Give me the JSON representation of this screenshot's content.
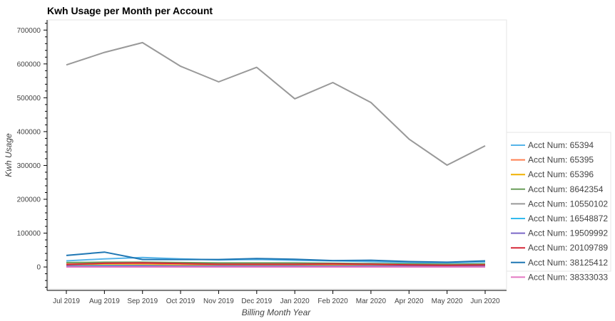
{
  "chart_data": {
    "type": "line",
    "title": "Kwh Usage per Month per Account",
    "xlabel": "Billing Month Year",
    "ylabel": "Kwh Usage",
    "categories": [
      "Jul 2019",
      "Aug 2019",
      "Sep 2019",
      "Oct 2019",
      "Nov 2019",
      "Dec 2019",
      "Jan 2020",
      "Feb 2020",
      "Mar 2020",
      "Apr 2020",
      "May 2020",
      "Jun 2020"
    ],
    "y_ticks": [
      0,
      100000,
      200000,
      300000,
      400000,
      500000,
      600000,
      700000
    ],
    "y_tick_labels": [
      "0",
      "100000",
      "200000",
      "300000",
      "400000",
      "500000",
      "600000",
      "700000"
    ],
    "ylim": [
      -65000,
      730000
    ],
    "grid": false,
    "legend_position": "right",
    "series": [
      {
        "name": "Acct Num: 65394",
        "color": "#56b4e9",
        "values": [
          18000,
          24000,
          28000,
          24000,
          21000,
          22000,
          20000,
          18000,
          16000,
          13000,
          12000,
          15000
        ]
      },
      {
        "name": "Acct Num: 65395",
        "color": "#ff7f50",
        "values": [
          9000,
          10000,
          10000,
          9000,
          8000,
          8000,
          8000,
          8000,
          7000,
          6000,
          6000,
          7000
        ]
      },
      {
        "name": "Acct Num: 65396",
        "color": "#f0b000",
        "values": [
          5000,
          6000,
          6000,
          5000,
          5000,
          5000,
          5000,
          5000,
          4000,
          4000,
          4000,
          4000
        ]
      },
      {
        "name": "Acct Num: 8642354",
        "color": "#6a9e5a",
        "values": [
          13000,
          14000,
          14000,
          13000,
          12000,
          12000,
          12000,
          11000,
          10000,
          9000,
          8000,
          9000
        ]
      },
      {
        "name": "Acct Num: 10550102",
        "color": "#999999",
        "values": [
          597000,
          634000,
          663000,
          593000,
          547000,
          590000,
          497000,
          545000,
          486000,
          378000,
          301000,
          358000
        ]
      },
      {
        "name": "Acct Num: 16548872",
        "color": "#33bbee",
        "values": [
          3000,
          4000,
          4000,
          3000,
          3000,
          3000,
          3000,
          3000,
          3000,
          2000,
          2000,
          2000
        ]
      },
      {
        "name": "Acct Num: 19509992",
        "color": "#7b68c8",
        "values": [
          2000,
          2000,
          3000,
          2000,
          2000,
          2000,
          2000,
          2000,
          2000,
          2000,
          1000,
          2000
        ]
      },
      {
        "name": "Acct Num: 20109789",
        "color": "#d62839",
        "values": [
          7000,
          11000,
          12000,
          10000,
          8000,
          8000,
          8000,
          9000,
          8000,
          6000,
          5000,
          6000
        ]
      },
      {
        "name": "Acct Num: 38125412",
        "color": "#1f77b4",
        "values": [
          34000,
          44000,
          22000,
          22000,
          22000,
          25000,
          23000,
          19000,
          20000,
          16000,
          14000,
          18000
        ]
      },
      {
        "name": "Acct Num: 38333033",
        "color": "#e377c2",
        "values": [
          0,
          0,
          0,
          0,
          0,
          0,
          0,
          0,
          0,
          0,
          0,
          0
        ]
      }
    ]
  }
}
